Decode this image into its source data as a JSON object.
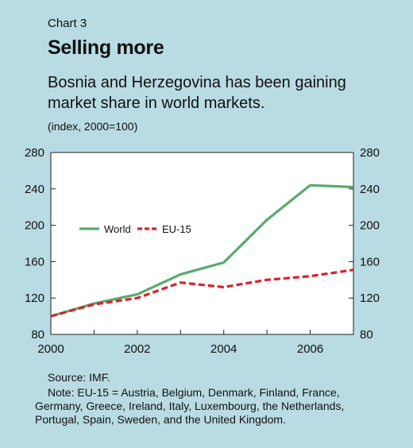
{
  "chart_number": "Chart 3",
  "chart_data": {
    "type": "line",
    "title": "Selling more",
    "subtitle": "Bosnia and Herzegovina has been gaining market share in world markets.",
    "unit_label": "(index, 2000=100)",
    "x": [
      2000,
      2001,
      2002,
      2003,
      2004,
      2005,
      2006,
      2007
    ],
    "x_ticks": [
      "2000",
      "2002",
      "2004",
      "2006"
    ],
    "xlim": [
      2000,
      2007
    ],
    "ylim": [
      80,
      280
    ],
    "y_ticks": [
      "280",
      "240",
      "200",
      "160",
      "120",
      "80"
    ],
    "series": [
      {
        "name": "World",
        "color": "#5aaa6e",
        "style": "solid",
        "values": [
          100,
          114,
          124,
          146,
          159,
          206,
          244,
          242
        ]
      },
      {
        "name": "EU-15",
        "color": "#d9232e",
        "style": "dashed",
        "values": [
          100,
          113,
          120,
          137,
          132,
          140,
          144,
          151
        ]
      }
    ],
    "legend_position": "left-middle",
    "grid": false
  },
  "source": "Source: IMF.",
  "note": "Note: EU-15 = Austria, Belgium, Denmark, Finland, France, Germany, Greece, Ireland, Italy, Luxembourg, the Netherlands, Portugal, Spain, Sweden, and the United Kingdom."
}
